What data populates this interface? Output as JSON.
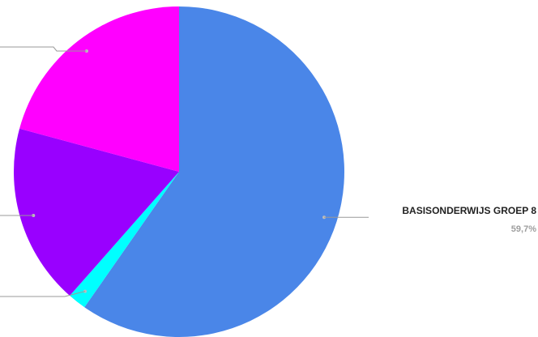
{
  "chart_data": {
    "type": "pie",
    "title": "",
    "start": "top",
    "direction": "clockwise",
    "slices": [
      {
        "label": "BASISONDERWIJS GROEP 8",
        "value": 59.7,
        "value_label": "59,7%",
        "color": "#4a86e8",
        "label_side": "right"
      },
      {
        "label": "",
        "value": 1.8,
        "value_label": "",
        "color": "#00ffff",
        "label_side": "left"
      },
      {
        "label": "",
        "value": 17.7,
        "value_label": "",
        "color": "#9900ff",
        "label_side": "left"
      },
      {
        "label": "",
        "value": 20.8,
        "value_label": "",
        "color": "#ff00ff",
        "label_side": "left"
      }
    ]
  }
}
